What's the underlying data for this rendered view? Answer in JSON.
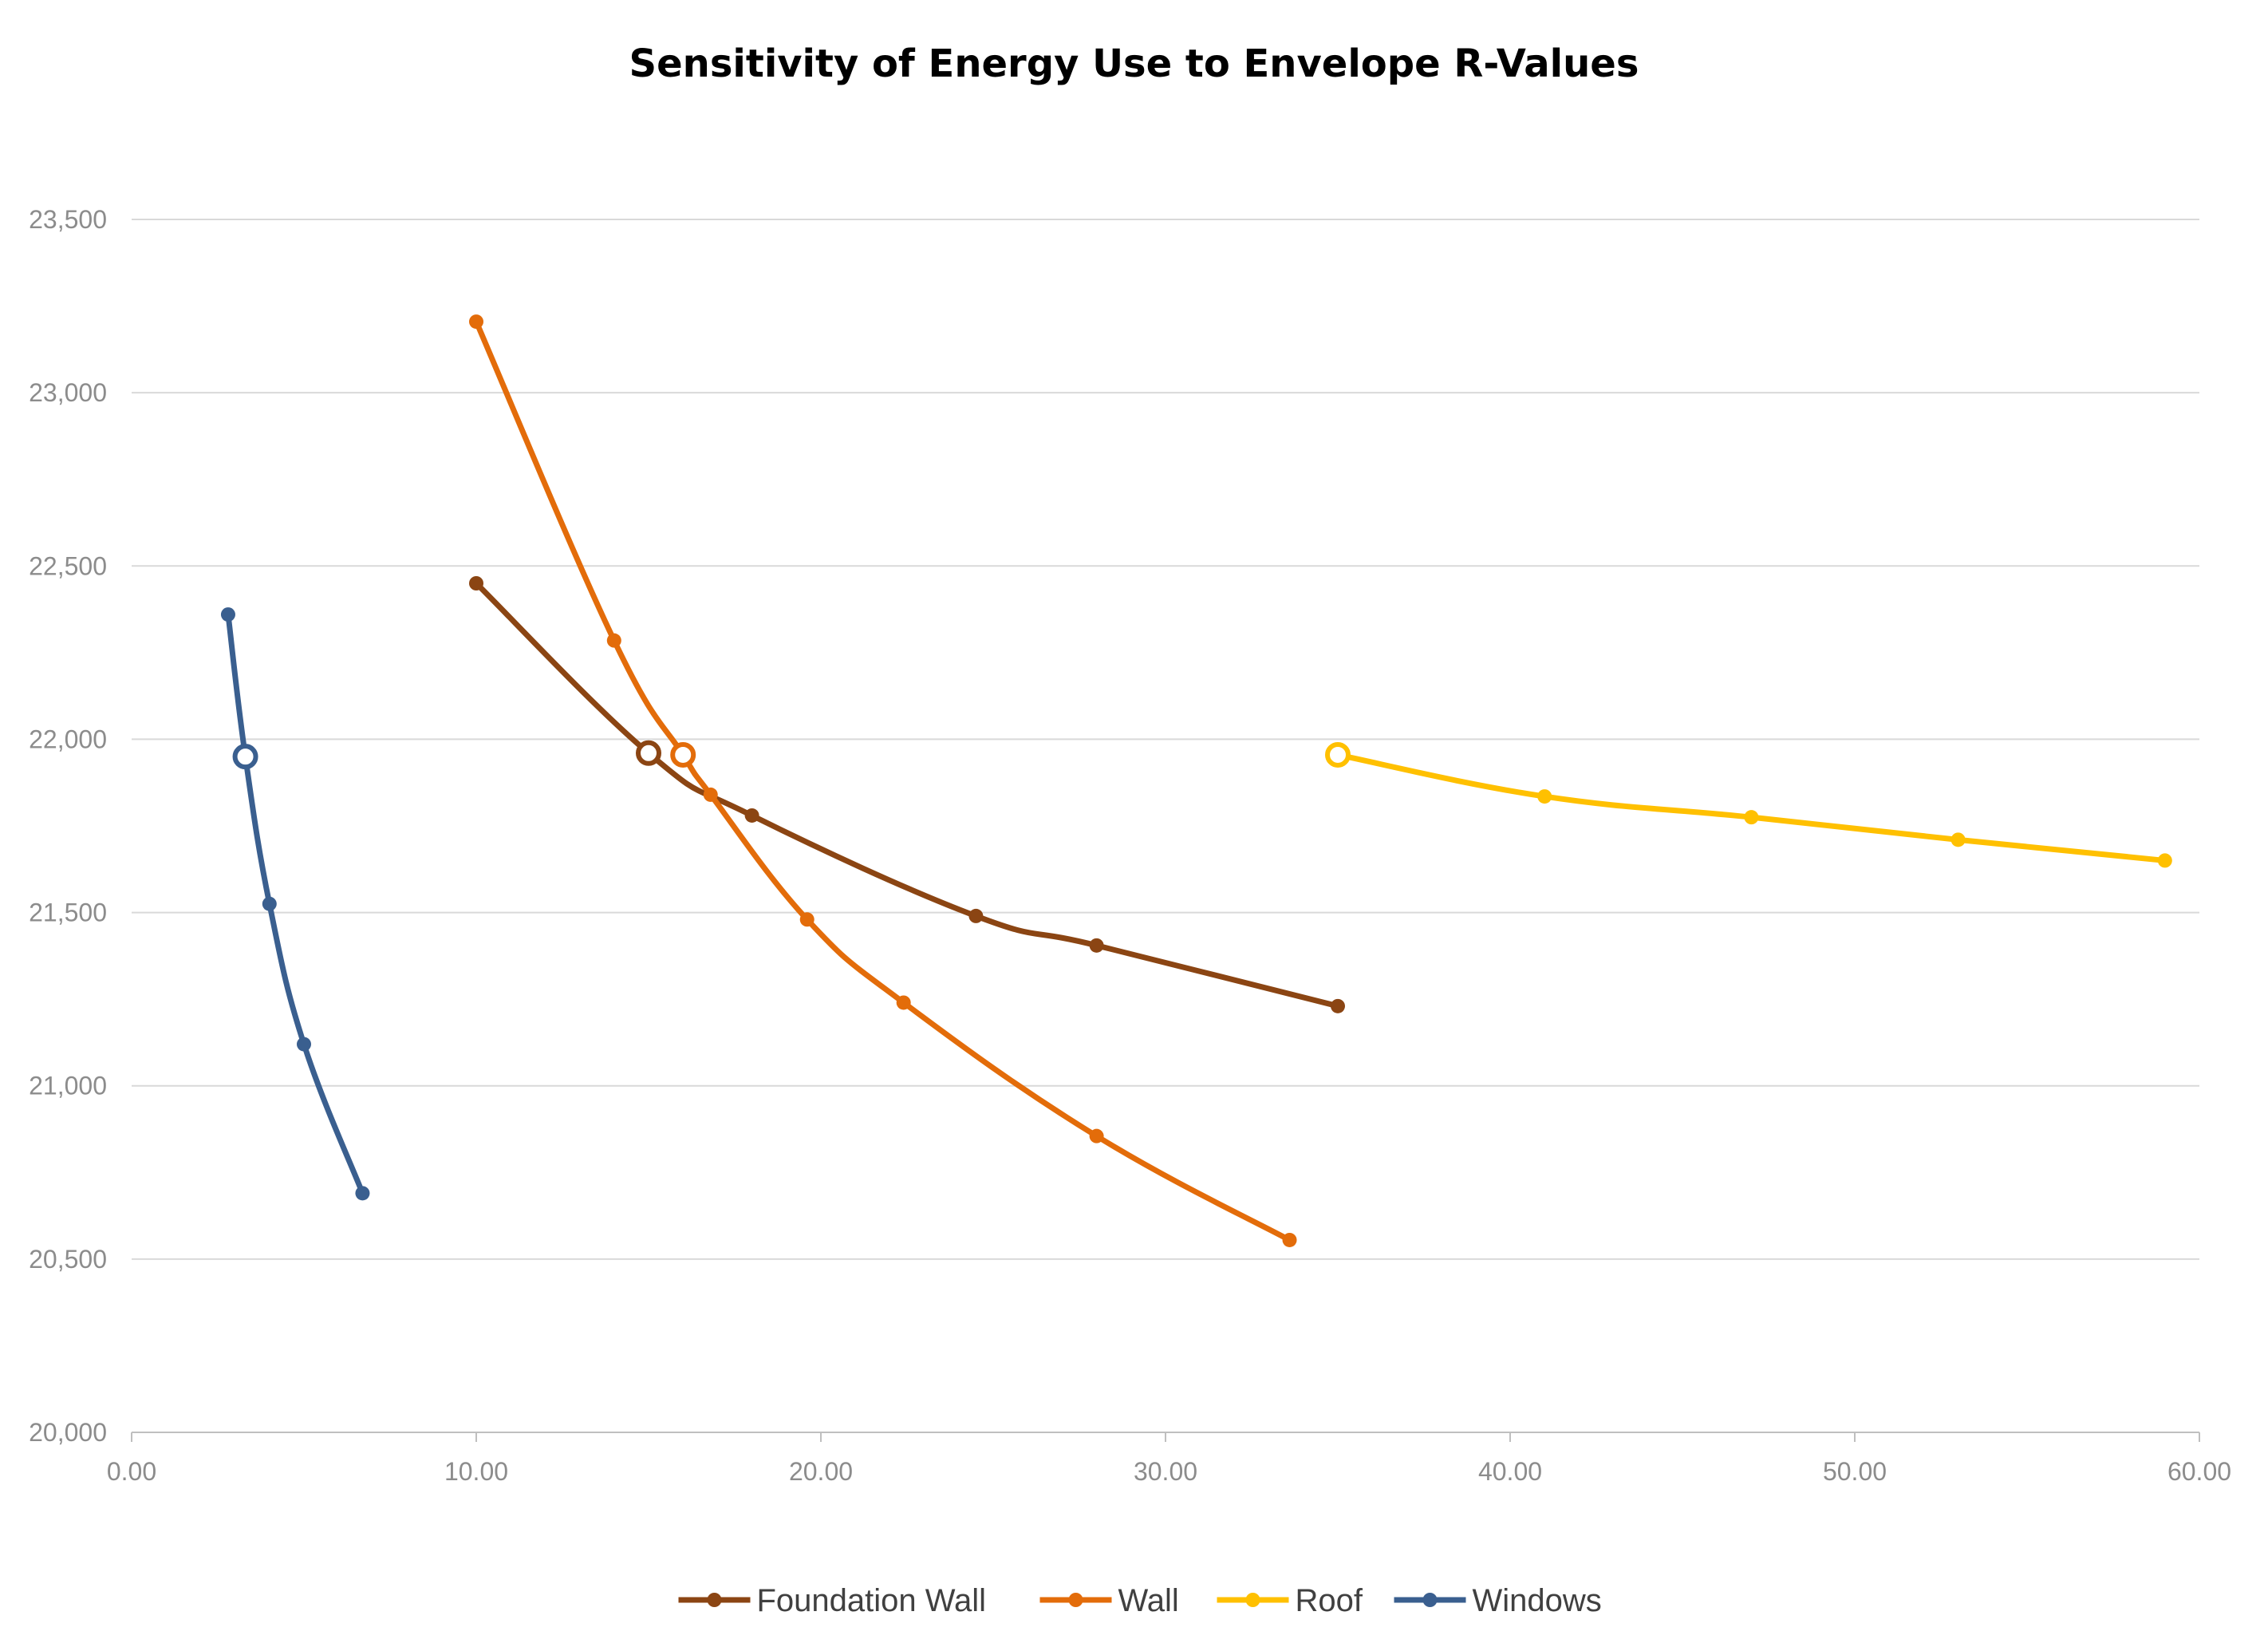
{
  "chart_data": {
    "type": "line",
    "title": "Sensitivity of Energy Use to Envelope R-Values",
    "xlabel": "",
    "ylabel": "",
    "xlim": [
      0,
      60
    ],
    "ylim": [
      20000,
      23500
    ],
    "x_ticks": [
      "0.00",
      "10.00",
      "20.00",
      "30.00",
      "40.00",
      "50.00",
      "60.00"
    ],
    "y_ticks": [
      "20,000",
      "20,500",
      "21,000",
      "21,500",
      "22,000",
      "22,500",
      "23,000",
      "23,500"
    ],
    "grid": "horizontal",
    "legend_position": "bottom",
    "series": [
      {
        "name": "Foundation Wall",
        "color": "#8B4513",
        "points": [
          [
            10.0,
            22450
          ],
          [
            15.0,
            21960
          ],
          [
            18.0,
            21780
          ],
          [
            24.5,
            21490
          ],
          [
            28.0,
            21405
          ],
          [
            35.0,
            21230
          ]
        ],
        "baseline": [
          15.0,
          21960
        ]
      },
      {
        "name": "Wall",
        "color": "#E36C0A",
        "points": [
          [
            10.0,
            23205
          ],
          [
            14.0,
            22285
          ],
          [
            16.0,
            21955
          ],
          [
            16.8,
            21840
          ],
          [
            19.6,
            21480
          ],
          [
            22.4,
            21240
          ],
          [
            28.0,
            20855
          ],
          [
            33.6,
            20555
          ]
        ],
        "baseline": [
          16.0,
          21955
        ]
      },
      {
        "name": "Roof",
        "color": "#FFC000",
        "points": [
          [
            35.0,
            21955
          ],
          [
            41.0,
            21835
          ],
          [
            47.0,
            21775
          ],
          [
            53.0,
            21710
          ],
          [
            59.0,
            21650
          ]
        ],
        "baseline": [
          35.0,
          21955
        ]
      },
      {
        "name": "Windows",
        "color": "#3A5F8F",
        "points": [
          [
            2.8,
            22360
          ],
          [
            3.3,
            21950
          ],
          [
            4.0,
            21525
          ],
          [
            5.0,
            21120
          ],
          [
            6.7,
            20690
          ]
        ],
        "baseline": [
          3.3,
          21950
        ]
      }
    ]
  }
}
